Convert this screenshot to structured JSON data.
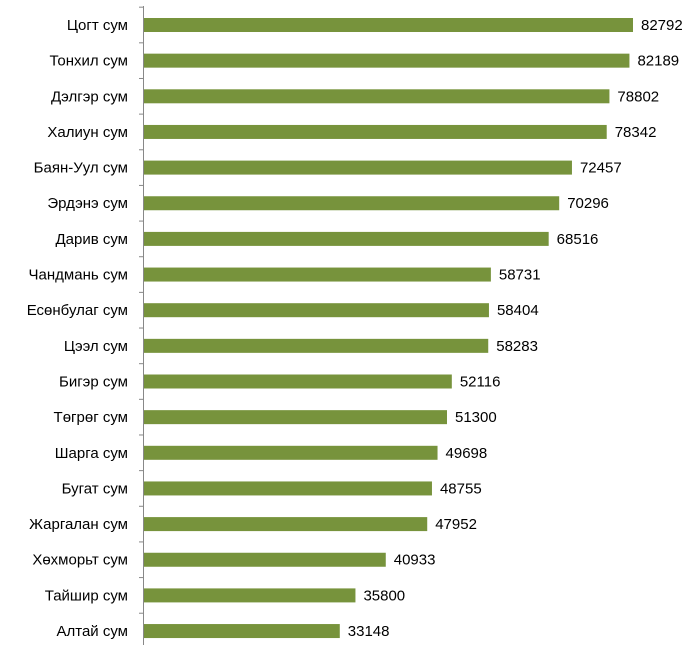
{
  "chart_data": {
    "type": "bar",
    "orientation": "horizontal",
    "categories": [
      "Цогт сум",
      "Тонхил сум",
      "Дэлгэр сум",
      "Халиун сум",
      "Баян-Уул сум",
      "Эрдэнэ сум",
      "Дарив сум",
      "Чандмань сум",
      "Есөнбулаг сум",
      "Цээл сум",
      "Бигэр сум",
      "Төгрөг сум",
      "Шарга сум",
      "Бугат сум",
      "Жаргалан сум",
      "Хөхморьт сум",
      "Тайшир сум",
      "Алтай сум"
    ],
    "values": [
      82792,
      82189,
      78802,
      78342,
      72457,
      70296,
      68516,
      58731,
      58404,
      58283,
      52116,
      51300,
      49698,
      48755,
      47952,
      40933,
      35800,
      33148
    ],
    "color": "#77933c"
  }
}
